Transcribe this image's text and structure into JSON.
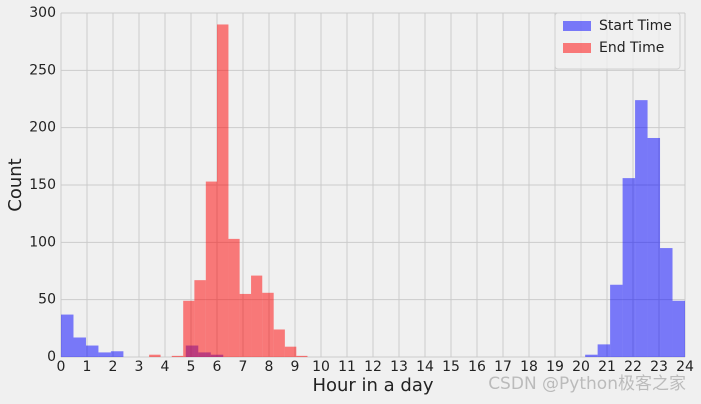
{
  "chart_data": {
    "type": "histogram",
    "xlabel": "Hour in a day",
    "ylabel": "Count",
    "series": [
      {
        "name": "Start Time",
        "color": "#0000ff",
        "bins": [
          0,
          0.48,
          0.96,
          1.44,
          1.92,
          2.4,
          2.88,
          3.36,
          3.84,
          4.32,
          4.8,
          5.28,
          5.76,
          6.24,
          6.72,
          7.2,
          7.68,
          8.16,
          8.64,
          9.12,
          9.6,
          10.08,
          10.56,
          11.04,
          11.52,
          12,
          12.48,
          12.96,
          13.44,
          13.92,
          14.4,
          14.88,
          15.36,
          15.84,
          16.32,
          16.8,
          17.28,
          17.76,
          18.24,
          18.72,
          19.2,
          19.68,
          20.16,
          20.64,
          21.12,
          21.6,
          22.08,
          22.56,
          23.04,
          23.52,
          24
        ],
        "values": [
          37,
          17,
          10,
          4,
          5,
          0,
          0,
          0,
          0,
          0,
          10,
          4,
          2,
          0,
          0,
          0,
          0,
          0,
          0,
          0,
          0,
          0,
          0,
          0,
          0,
          0,
          0,
          0,
          0,
          0,
          0,
          0,
          0,
          0,
          0,
          0,
          0,
          0,
          0,
          0,
          0,
          0,
          2,
          11,
          63,
          156,
          224,
          191,
          95,
          49
        ]
      },
      {
        "name": "End Time",
        "color": "#ff0000",
        "bins": [
          3.39,
          3.83,
          4.26,
          4.7,
          5.13,
          5.57,
          6.0,
          6.44,
          6.87,
          7.31,
          7.74,
          8.18,
          8.61,
          9.05,
          9.48
        ],
        "values": [
          2,
          0,
          1,
          49,
          67,
          153,
          290,
          103,
          55,
          71,
          56,
          24,
          9,
          1
        ]
      }
    ],
    "xlim": [
      0,
      24
    ],
    "ylim": [
      0,
      300
    ],
    "xticks": [
      0,
      1,
      2,
      3,
      4,
      5,
      6,
      7,
      8,
      9,
      10,
      11,
      12,
      13,
      14,
      15,
      16,
      17,
      18,
      19,
      20,
      21,
      22,
      23,
      24
    ],
    "yticks": [
      0,
      50,
      100,
      150,
      200,
      250,
      300
    ],
    "grid": true,
    "legend": "upper right",
    "watermark": "CSDN @Python极客之家"
  }
}
